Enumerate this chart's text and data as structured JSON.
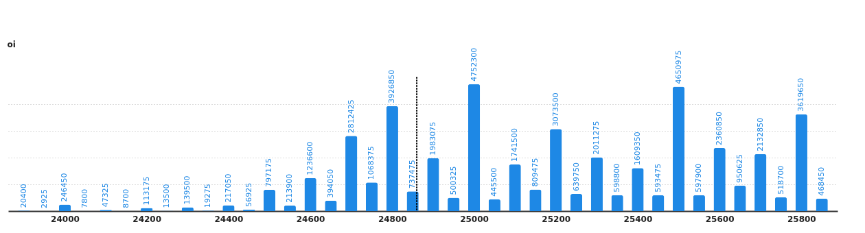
{
  "chart_data": {
    "type": "bar",
    "ylabel": "oi",
    "x": [
      23900,
      23950,
      24000,
      24050,
      24100,
      24150,
      24200,
      24250,
      24300,
      24350,
      24400,
      24450,
      24500,
      24550,
      24600,
      24650,
      24700,
      24750,
      24800,
      24850,
      24900,
      24950,
      25000,
      25050,
      25100,
      25150,
      25200,
      25250,
      25300,
      25350,
      25400,
      25450,
      25500,
      25550,
      25600,
      25650,
      25700,
      25750,
      25800,
      25850
    ],
    "values": [
      20400,
      2925,
      246450,
      7800,
      47325,
      8700,
      113175,
      13500,
      139500,
      19275,
      217050,
      56925,
      797175,
      213900,
      1236600,
      394050,
      2812425,
      1068375,
      3926850,
      737475,
      1983075,
      500325,
      4752300,
      445500,
      1741500,
      809475,
      3073500,
      639750,
      2011275,
      598800,
      1609350,
      593475,
      4650975,
      597900,
      2360850,
      950625,
      2132850,
      518700,
      3619650,
      468450
    ],
    "color": "#1e88e5",
    "data_labels": true,
    "xlim": [
      23870,
      25880
    ],
    "xticks": [
      24000,
      24200,
      24400,
      24600,
      24800,
      25000,
      25200,
      25400,
      25600,
      25800
    ],
    "ylim": [
      0,
      5000000
    ],
    "yticks": [
      {
        "value": 1000000,
        "label": null
      },
      {
        "value": 2000000,
        "label": null
      },
      {
        "value": 3000000,
        "label": null
      },
      {
        "value": 4000000,
        "label": null
      }
    ],
    "tick_labels": "x",
    "grid": "y",
    "ref_lines": [
      {
        "axis": "x",
        "value": 24860,
        "color": "#000000",
        "line_style": "dotted"
      }
    ]
  }
}
